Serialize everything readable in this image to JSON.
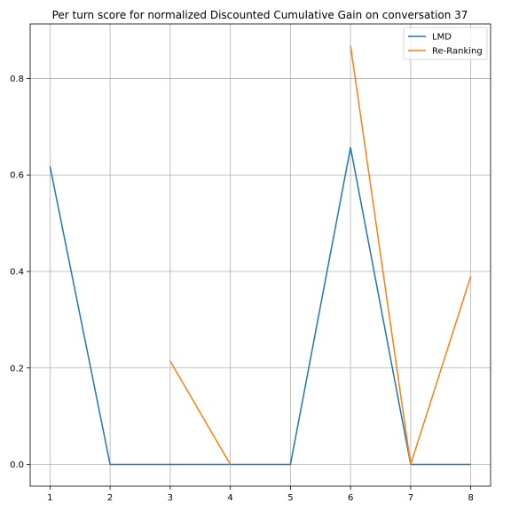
{
  "chart_data": {
    "type": "line",
    "title": "Per turn score for normalized Discounted Cumulative Gain on conversation 37",
    "xlabel": "",
    "ylabel": "",
    "x": [
      1,
      2,
      3,
      4,
      5,
      6,
      7,
      8
    ],
    "xlim": [
      0.67,
      8.33
    ],
    "ylim": [
      -0.045,
      0.913
    ],
    "xticks": [
      1,
      2,
      3,
      4,
      5,
      6,
      7,
      8
    ],
    "yticks": [
      0.0,
      0.2,
      0.4,
      0.6,
      0.8
    ],
    "ytick_labels": [
      "0.0",
      "0.2",
      "0.4",
      "0.6",
      "0.8"
    ],
    "grid": true,
    "legend_position": "top-right",
    "series": [
      {
        "name": "LMD",
        "color": "#1f77b4",
        "values": [
          0.618,
          0.0,
          0.0,
          0.0,
          0.0,
          0.657,
          0.0,
          0.0
        ]
      },
      {
        "name": "Re-Ranking",
        "color": "#ff7f0e",
        "values": [
          null,
          null,
          0.214,
          0.0,
          null,
          0.868,
          0.0,
          0.39
        ]
      }
    ]
  }
}
